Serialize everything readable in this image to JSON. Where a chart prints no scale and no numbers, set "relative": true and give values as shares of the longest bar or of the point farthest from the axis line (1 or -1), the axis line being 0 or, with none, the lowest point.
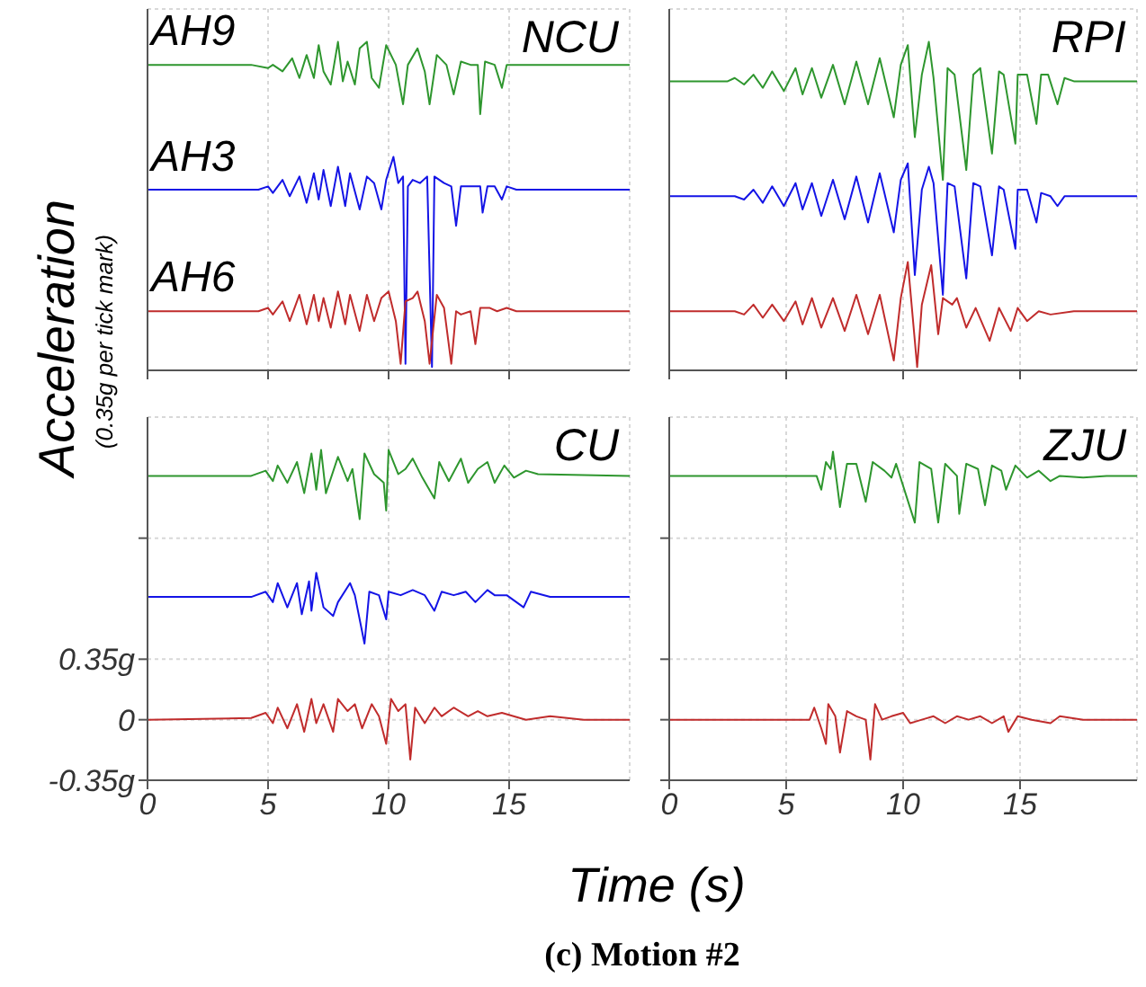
{
  "chart_data": [
    {
      "type": "line",
      "title": "NCU",
      "relative": true,
      "xlim": [
        0,
        20
      ],
      "xticks": [
        0,
        5,
        10,
        15
      ],
      "grid": true,
      "tick_labels": false,
      "series": [
        {
          "name": "AH9",
          "color": "#2e962e",
          "x": [
            0,
            4.3,
            5.0,
            5.2,
            5.6,
            6.0,
            6.3,
            6.6,
            6.9,
            7.1,
            7.3,
            7.6,
            7.9,
            8.1,
            8.3,
            8.6,
            8.8,
            9.1,
            9.3,
            9.6,
            9.9,
            10.3,
            10.6,
            10.8,
            11.2,
            11.5,
            11.7,
            12.0,
            12.4,
            12.7,
            13.0,
            13.4,
            13.7,
            13.8,
            14.0,
            14.4,
            14.7,
            14.9,
            15.3,
            20
          ],
          "values": [
            0.93,
            0.93,
            0.92,
            0.93,
            0.91,
            0.95,
            0.89,
            0.96,
            0.89,
            0.99,
            0.91,
            0.87,
            1,
            0.88,
            0.94,
            0.87,
            0.98,
            1,
            0.89,
            0.86,
            0.99,
            0.93,
            0.81,
            0.93,
            0.98,
            0.91,
            0.81,
            0.96,
            0.93,
            0.84,
            0.94,
            0.93,
            0.93,
            0.78,
            0.94,
            0.93,
            0.86,
            0.93,
            0.93,
            0.93
          ]
        },
        {
          "name": "AH3",
          "color": "#1414e6",
          "x": [
            0,
            4.6,
            5.0,
            5.2,
            5.6,
            5.9,
            6.3,
            6.6,
            6.9,
            7.1,
            7.3,
            7.6,
            7.9,
            8.2,
            8.4,
            8.8,
            9.1,
            9.4,
            9.7,
            9.9,
            10.2,
            10.4,
            10.6,
            10.7,
            10.8,
            11.0,
            11.3,
            11.6,
            11.8,
            11.9,
            12.3,
            12.6,
            12.8,
            13.0,
            13.4,
            13.8,
            13.9,
            14.1,
            14.4,
            14.7,
            14.9,
            15.3,
            20
          ],
          "values": [
            0.55,
            0.55,
            0.56,
            0.54,
            0.58,
            0.53,
            0.59,
            0.51,
            0.6,
            0.52,
            0.61,
            0.5,
            0.62,
            0.5,
            0.6,
            0.49,
            0.59,
            0.57,
            0.49,
            0.58,
            0.65,
            0.57,
            0.59,
            0.02,
            0.56,
            0.58,
            0.57,
            0.59,
            0.01,
            0.59,
            0.57,
            0.56,
            0.44,
            0.56,
            0.56,
            0.56,
            0.48,
            0.56,
            0.56,
            0.52,
            0.56,
            0.55,
            0.55
          ]
        },
        {
          "name": "AH6",
          "color": "#c02c2c",
          "x": [
            0,
            4.6,
            5.0,
            5.2,
            5.6,
            5.9,
            6.3,
            6.6,
            6.9,
            7.1,
            7.3,
            7.6,
            7.9,
            8.2,
            8.4,
            8.8,
            9.1,
            9.4,
            9.7,
            10.0,
            10.3,
            10.5,
            10.7,
            11.0,
            11.2,
            11.5,
            11.7,
            12.0,
            12.3,
            12.6,
            12.8,
            13.0,
            13.4,
            13.6,
            13.8,
            14.2,
            14.5,
            14.9,
            15.3,
            20
          ],
          "values": [
            0.18,
            0.18,
            0.19,
            0.17,
            0.21,
            0.15,
            0.23,
            0.14,
            0.23,
            0.15,
            0.22,
            0.13,
            0.24,
            0.14,
            0.23,
            0.12,
            0.23,
            0.15,
            0.22,
            0.24,
            0.15,
            0.02,
            0.21,
            0.22,
            0.24,
            0.15,
            0.02,
            0.23,
            0.19,
            0.02,
            0.18,
            0.17,
            0.18,
            0.08,
            0.19,
            0.19,
            0.18,
            0.19,
            0.18,
            0.18
          ]
        }
      ]
    },
    {
      "type": "line",
      "title": "RPI",
      "relative": true,
      "xlim": [
        0,
        20
      ],
      "xticks": [
        0,
        5,
        10,
        15
      ],
      "grid": true,
      "tick_labels": false,
      "series": [
        {
          "color": "#2e962e",
          "x": [
            0,
            2.5,
            2.8,
            3.2,
            3.6,
            4.0,
            4.4,
            4.9,
            5.4,
            5.7,
            6.1,
            6.5,
            7.0,
            7.5,
            8.0,
            8.5,
            9.0,
            9.6,
            9.9,
            10.2,
            10.5,
            10.8,
            11.1,
            11.3,
            11.7,
            11.9,
            12.2,
            12.7,
            13.0,
            13.3,
            13.8,
            14.1,
            14.3,
            14.8,
            14.9,
            15.3,
            15.7,
            15.9,
            16.2,
            16.6,
            16.9,
            17.3,
            20
          ],
          "values": [
            0.88,
            0.88,
            0.89,
            0.87,
            0.9,
            0.86,
            0.91,
            0.85,
            0.92,
            0.84,
            0.92,
            0.83,
            0.93,
            0.81,
            0.94,
            0.81,
            0.95,
            0.77,
            0.93,
            0.99,
            0.71,
            0.9,
            1,
            0.89,
            0.58,
            0.92,
            0.9,
            0.61,
            0.9,
            0.92,
            0.66,
            0.91,
            0.9,
            0.69,
            0.9,
            0.9,
            0.75,
            0.9,
            0.9,
            0.81,
            0.89,
            0.88,
            0.88
          ]
        },
        {
          "color": "#1414e6",
          "x": [
            0,
            2.5,
            2.8,
            3.2,
            3.6,
            4.0,
            4.4,
            4.9,
            5.4,
            5.7,
            6.1,
            6.5,
            7.0,
            7.5,
            8.0,
            8.5,
            9.0,
            9.6,
            9.9,
            10.2,
            10.5,
            10.8,
            11.1,
            11.3,
            11.7,
            11.9,
            12.2,
            12.7,
            13.0,
            13.3,
            13.8,
            14.1,
            14.3,
            14.8,
            14.9,
            15.3,
            15.7,
            15.9,
            16.3,
            16.6,
            16.9,
            17.3,
            20
          ],
          "values": [
            0.53,
            0.53,
            0.53,
            0.52,
            0.55,
            0.51,
            0.56,
            0.5,
            0.57,
            0.49,
            0.57,
            0.47,
            0.58,
            0.46,
            0.59,
            0.45,
            0.6,
            0.42,
            0.58,
            0.63,
            0.29,
            0.55,
            0.62,
            0.57,
            0.23,
            0.57,
            0.56,
            0.28,
            0.57,
            0.56,
            0.35,
            0.56,
            0.55,
            0.37,
            0.55,
            0.55,
            0.45,
            0.54,
            0.53,
            0.5,
            0.53,
            0.53,
            0.53
          ]
        },
        {
          "color": "#c02c2c",
          "x": [
            0,
            2.5,
            2.8,
            3.2,
            3.6,
            4.0,
            4.4,
            4.9,
            5.4,
            5.7,
            6.1,
            6.5,
            7.0,
            7.5,
            8.0,
            8.5,
            9.0,
            9.6,
            9.9,
            10.2,
            10.6,
            10.8,
            11.2,
            11.5,
            11.7,
            12.1,
            12.3,
            12.7,
            13.1,
            13.7,
            14.1,
            14.6,
            14.9,
            15.3,
            15.8,
            16.3,
            17.3,
            20
          ],
          "values": [
            0.18,
            0.18,
            0.18,
            0.17,
            0.2,
            0.16,
            0.2,
            0.15,
            0.21,
            0.14,
            0.22,
            0.13,
            0.22,
            0.12,
            0.23,
            0.11,
            0.23,
            0.03,
            0.22,
            0.33,
            0.01,
            0.2,
            0.32,
            0.11,
            0.22,
            0.2,
            0.22,
            0.13,
            0.19,
            0.09,
            0.19,
            0.12,
            0.19,
            0.15,
            0.18,
            0.17,
            0.18,
            0.18
          ]
        }
      ]
    },
    {
      "type": "line",
      "title": "CU",
      "xlabel": "Time (s)",
      "ylabel": "Acceleration",
      "annotations": [
        "(0.35g per tick mark)",
        "(c) Motion #2"
      ],
      "xlim": [
        0,
        20
      ],
      "xticks": [
        0,
        5,
        10,
        15
      ],
      "ylim": [
        -0.35,
        1.75
      ],
      "yticks": [
        {
          "value": -0.35,
          "label": "-0.35g"
        },
        0,
        {
          "value": 0.35,
          "label": "0.35g"
        },
        {
          "value": 1.05,
          "label": null
        }
      ],
      "grid": true,
      "series": [
        {
          "color": "#2e962e",
          "x": [
            0,
            4.3,
            4.9,
            5.2,
            5.4,
            5.8,
            6.2,
            6.5,
            6.8,
            7.0,
            7.2,
            7.4,
            7.9,
            8.3,
            8.5,
            8.8,
            9.0,
            9.4,
            9.8,
            9.9,
            10.0,
            10.4,
            10.7,
            11.0,
            11.4,
            11.9,
            12.1,
            12.5,
            13.0,
            13.3,
            13.7,
            14.1,
            14.4,
            14.8,
            15.2,
            15.7,
            16.2,
            20
          ],
          "values": [
            1.41,
            1.41,
            1.44,
            1.38,
            1.47,
            1.37,
            1.49,
            1.31,
            1.54,
            1.33,
            1.56,
            1.31,
            1.52,
            1.38,
            1.45,
            1.16,
            1.54,
            1.42,
            1.37,
            1.21,
            1.56,
            1.42,
            1.45,
            1.51,
            1.4,
            1.28,
            1.49,
            1.38,
            1.51,
            1.37,
            1.45,
            1.49,
            1.37,
            1.47,
            1.4,
            1.44,
            1.42,
            1.41
          ]
        },
        {
          "color": "#1414e6",
          "x": [
            0,
            4.3,
            4.9,
            5.2,
            5.4,
            5.8,
            6.2,
            6.4,
            6.7,
            6.8,
            7.0,
            7.3,
            7.7,
            7.9,
            8.4,
            8.6,
            9.0,
            9.2,
            9.6,
            9.9,
            10.0,
            10.5,
            11.0,
            11.5,
            11.9,
            12.2,
            12.7,
            13.2,
            13.6,
            14.1,
            14.4,
            14.9,
            15.6,
            15.9,
            16.7,
            20
          ],
          "values": [
            0.71,
            0.71,
            0.74,
            0.68,
            0.79,
            0.65,
            0.79,
            0.61,
            0.8,
            0.63,
            0.85,
            0.65,
            0.6,
            0.68,
            0.79,
            0.72,
            0.44,
            0.74,
            0.72,
            0.58,
            0.74,
            0.72,
            0.75,
            0.72,
            0.63,
            0.74,
            0.72,
            0.74,
            0.68,
            0.75,
            0.72,
            0.72,
            0.65,
            0.74,
            0.71,
            0.71
          ]
        },
        {
          "color": "#c02c2c",
          "x": [
            0,
            4.3,
            4.9,
            5.2,
            5.4,
            5.8,
            6.2,
            6.5,
            6.8,
            7.0,
            7.3,
            7.7,
            7.9,
            8.3,
            8.6,
            8.9,
            9.3,
            9.6,
            9.9,
            10.1,
            10.4,
            10.7,
            10.9,
            11.1,
            11.5,
            11.9,
            12.2,
            12.7,
            13.3,
            13.7,
            14.1,
            14.7,
            15.7,
            16.7,
            18.1,
            20
          ],
          "values": [
            0,
            0.01,
            0.04,
            -0.02,
            0.07,
            -0.05,
            0.09,
            -0.07,
            0.12,
            -0.02,
            0.09,
            -0.07,
            0.12,
            0.05,
            0.09,
            -0.05,
            0.09,
            0.02,
            -0.14,
            0.12,
            0.05,
            0.09,
            -0.23,
            0.07,
            -0.02,
            0.07,
            0.02,
            0.07,
            0.02,
            0.05,
            0.02,
            0.04,
            0,
            0.02,
            0,
            0
          ]
        }
      ]
    },
    {
      "type": "line",
      "title": "ZJU",
      "xlim": [
        0,
        20
      ],
      "xticks": [
        0,
        5,
        10,
        15
      ],
      "ylim": [
        -0.35,
        1.75
      ],
      "yticks": [
        {
          "value": -0.35,
          "label": null
        },
        {
          "value": 0,
          "label": null
        },
        {
          "value": 0.35,
          "label": null
        },
        {
          "value": 1.05,
          "label": null
        }
      ],
      "grid": true,
      "tick_labels": "x",
      "series": [
        {
          "color": "#2e962e",
          "x": [
            0,
            6.1,
            6.3,
            6.5,
            6.7,
            6.9,
            7.0,
            7.3,
            7.6,
            8.0,
            8.4,
            8.7,
            9.2,
            9.5,
            9.7,
            10.5,
            10.7,
            11.2,
            11.5,
            11.8,
            12.3,
            12.4,
            12.7,
            13.2,
            13.5,
            13.8,
            14.2,
            14.4,
            14.8,
            15.3,
            15.8,
            16.3,
            16.7,
            17.7,
            18.7,
            20
          ],
          "values": [
            1.41,
            1.41,
            1.41,
            1.33,
            1.49,
            1.45,
            1.55,
            1.23,
            1.48,
            1.48,
            1.26,
            1.49,
            1.44,
            1.4,
            1.48,
            1.14,
            1.49,
            1.45,
            1.14,
            1.48,
            1.41,
            1.19,
            1.48,
            1.45,
            1.24,
            1.47,
            1.44,
            1.33,
            1.47,
            1.4,
            1.44,
            1.38,
            1.41,
            1.4,
            1.41,
            1.41
          ]
        },
        {
          "color": "#c02c2c",
          "x": [
            0,
            4.9,
            6.0,
            6.2,
            6.5,
            6.7,
            6.8,
            7.1,
            7.3,
            7.6,
            8.0,
            8.4,
            8.6,
            8.8,
            9.1,
            9.5,
            10.0,
            10.3,
            10.8,
            11.3,
            11.8,
            12.3,
            12.8,
            13.3,
            13.8,
            14.3,
            14.5,
            14.9,
            15.5,
            16.3,
            16.7,
            17.7,
            20
          ],
          "values": [
            0,
            0,
            0,
            0.07,
            -0.05,
            -0.14,
            0.09,
            0.02,
            -0.19,
            0.05,
            0.02,
            0,
            -0.23,
            0.09,
            0,
            0.02,
            0.04,
            -0.02,
            0,
            0.02,
            -0.02,
            0.02,
            0,
            0.02,
            -0.02,
            0.02,
            -0.07,
            0.02,
            0,
            -0.02,
            0.02,
            0,
            0
          ]
        }
      ]
    }
  ]
}
